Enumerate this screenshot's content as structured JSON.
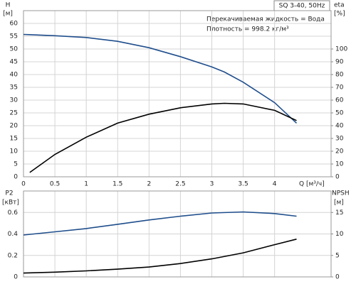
{
  "chart_data": [
    {
      "type": "line",
      "title": "SQ 3-40, 50Hz",
      "annotations": [
        "Перекачиваемая жидкость = Вода",
        "Плотность = 998.2 кг/м³"
      ],
      "ylabel": "H",
      "yunit": "[м]",
      "y2label": "eta",
      "y2unit": "[%]",
      "xlabel": "Q [м³/ч]",
      "x": [
        0,
        0.1,
        0.5,
        1.0,
        1.5,
        2.0,
        2.5,
        3.0,
        3.2,
        3.5,
        4.0,
        4.35
      ],
      "series": [
        {
          "name": "H",
          "color": "#1f4e8c",
          "values": [
            55.7,
            55.6,
            55.2,
            54.5,
            53,
            50.5,
            47,
            43,
            41,
            37,
            29,
            21
          ]
        },
        {
          "name": "eta",
          "color": "#000000",
          "axis": "y2",
          "values": [
            null,
            3.4,
            17.5,
            31,
            42,
            49,
            54,
            57,
            57.5,
            57,
            52,
            44
          ]
        }
      ],
      "xlim": [
        0,
        4.9
      ],
      "xticks": [
        0,
        0.5,
        1.0,
        1.5,
        2.0,
        2.5,
        3.0,
        3.5,
        4.0
      ],
      "ylim": [
        0,
        65
      ],
      "yticks": [
        0,
        5,
        10,
        15,
        20,
        25,
        30,
        35,
        40,
        45,
        50,
        55,
        60
      ],
      "y2lim": [
        0,
        130
      ],
      "y2ticks": [
        0,
        10,
        20,
        30,
        40,
        50,
        60,
        70,
        80,
        90,
        100
      ],
      "grid": true
    },
    {
      "type": "line",
      "ylabel": "P2",
      "yunit": "[кВт]",
      "y2label": "NPSH",
      "y2unit": "[м]",
      "x": [
        0,
        0.5,
        1.0,
        1.5,
        2.0,
        2.5,
        3.0,
        3.5,
        4.0,
        4.35
      ],
      "series": [
        {
          "name": "P2",
          "color": "#1f4e8c",
          "values": [
            0.39,
            0.42,
            0.45,
            0.49,
            0.53,
            0.565,
            0.595,
            0.605,
            0.59,
            0.565
          ]
        },
        {
          "name": "NPSH",
          "color": "#000000",
          "axis": "y2",
          "values": [
            0.9,
            1.1,
            1.4,
            1.8,
            2.3,
            3.1,
            4.2,
            5.6,
            7.5,
            8.8
          ]
        }
      ],
      "xlim": [
        0,
        4.9
      ],
      "ylim": [
        0,
        0.8
      ],
      "yticks": [
        0,
        0.2,
        0.4,
        0.6
      ],
      "y2lim": [
        0,
        20
      ],
      "y2ticks": [
        0,
        5,
        10,
        15
      ],
      "grid": true
    }
  ]
}
